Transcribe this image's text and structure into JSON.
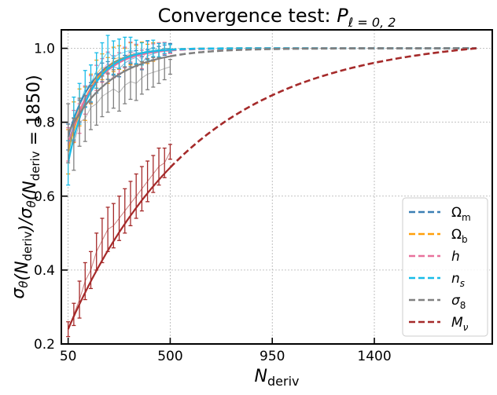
{
  "chart_data": {
    "type": "line",
    "title": "Convergence test: P_{ℓ=0,2}",
    "title_parts": {
      "main": "Convergence test: ",
      "symbol": "P",
      "subscript": "ℓ = 0, 2"
    },
    "xlabel": "N_deriv",
    "xlabel_parts": {
      "symbol": "N",
      "subscript": "deriv"
    },
    "ylabel": "σ_θ(N_deriv)/σ_θ(N_deriv = 1850)",
    "ylabel_parts": [
      {
        "t": "σ",
        "s": "θ"
      },
      {
        "t": "(N",
        "s": "deriv"
      },
      {
        "t": ")/σ",
        "s": "θ"
      },
      {
        "t": "(N",
        "s": "deriv"
      },
      {
        "t": " = 1850)",
        "s": ""
      }
    ],
    "xlim": [
      20,
      1920
    ],
    "ylim": [
      0.2,
      1.05
    ],
    "xticks": [
      50,
      500,
      950,
      1400
    ],
    "yticks": [
      0.2,
      0.4,
      0.6,
      0.8,
      1.0
    ],
    "xtick_labels": [
      "50",
      "500",
      "950",
      "1400"
    ],
    "ytick_labels": [
      "0.2",
      "0.4",
      "0.6",
      "0.8",
      "1.0"
    ],
    "grid": true,
    "legend_position": "lower right",
    "fit_range": [
      50,
      1850
    ],
    "fit_solid_until": 500,
    "series": [
      {
        "name": "Ω",
        "sub": "m",
        "italic": false,
        "color": "#3b7fb4",
        "fit": {
          "tau": 110
        },
        "sample_at": 70,
        "sample_jitter": 0.025,
        "data": {
          "x": [
            50,
            75,
            100,
            125,
            150,
            175,
            200,
            225,
            250,
            275,
            300,
            325,
            350,
            375,
            400,
            425,
            450,
            475,
            500
          ],
          "y": [
            0.76,
            0.78,
            0.83,
            0.87,
            0.88,
            0.905,
            0.935,
            0.94,
            0.95,
            0.945,
            0.96,
            0.97,
            0.975,
            0.96,
            0.98,
            0.985,
            0.99,
            0.995,
            1.0
          ],
          "err": [
            0.035,
            0.032,
            0.03,
            0.028,
            0.027,
            0.026,
            0.025,
            0.024,
            0.023,
            0.022,
            0.021,
            0.02,
            0.019,
            0.018,
            0.017,
            0.016,
            0.015,
            0.014,
            0.013
          ]
        }
      },
      {
        "name": "Ω",
        "sub": "b",
        "italic": false,
        "color": "#ff9f0a",
        "fit": {
          "tau": 105
        },
        "sample_at": 95,
        "sample_jitter": 0.03,
        "data": {
          "x": [
            50,
            75,
            100,
            125,
            150,
            175,
            200,
            225,
            250,
            275,
            300,
            325,
            350,
            375,
            400,
            425,
            450,
            475,
            500
          ],
          "y": [
            0.72,
            0.8,
            0.84,
            0.85,
            0.89,
            0.93,
            0.95,
            0.94,
            0.97,
            0.975,
            0.97,
            0.985,
            0.98,
            0.99,
            0.985,
            0.99,
            0.995,
            1.0,
            1.0
          ],
          "err": [
            0.06,
            0.055,
            0.05,
            0.045,
            0.04,
            0.038,
            0.035,
            0.035,
            0.033,
            0.032,
            0.03,
            0.03,
            0.028,
            0.027,
            0.026,
            0.025,
            0.02,
            0.015,
            0.01
          ]
        }
      },
      {
        "name": "h",
        "sub": "",
        "italic": true,
        "color": "#e8719c",
        "fit": {
          "tau": 118
        },
        "sample_at": 82,
        "sample_jitter": 0.03,
        "data": {
          "x": [
            50,
            75,
            100,
            125,
            150,
            175,
            200,
            225,
            250,
            275,
            300,
            325,
            350,
            375,
            400,
            425,
            450,
            475,
            500
          ],
          "y": [
            0.74,
            0.79,
            0.81,
            0.86,
            0.89,
            0.92,
            0.94,
            0.96,
            0.95,
            0.96,
            0.975,
            0.99,
            0.985,
            0.97,
            0.995,
            0.99,
            0.995,
            1.0,
            0.998
          ],
          "err": [
            0.045,
            0.042,
            0.04,
            0.038,
            0.036,
            0.034,
            0.032,
            0.03,
            0.03,
            0.028,
            0.028,
            0.027,
            0.026,
            0.025,
            0.024,
            0.022,
            0.02,
            0.016,
            0.012
          ]
        }
      },
      {
        "name": "n",
        "sub": "s",
        "italic": true,
        "color": "#18bce8",
        "fit": {
          "tau": 102
        },
        "sample_at": 60,
        "sample_jitter": 0.035,
        "data": {
          "x": [
            50,
            75,
            100,
            125,
            150,
            175,
            200,
            225,
            250,
            275,
            300,
            325,
            350,
            375,
            400,
            425,
            450,
            475,
            500
          ],
          "y": [
            0.69,
            0.81,
            0.85,
            0.89,
            0.905,
            0.94,
            0.97,
            0.99,
            0.975,
            0.985,
            0.99,
            0.995,
            0.99,
            0.985,
            0.995,
            1.0,
            0.995,
            1.0,
            1.0
          ],
          "err": [
            0.06,
            0.058,
            0.055,
            0.05,
            0.05,
            0.048,
            0.045,
            0.045,
            0.045,
            0.04,
            0.04,
            0.035,
            0.032,
            0.03,
            0.026,
            0.022,
            0.018,
            0.014,
            0.01
          ]
        }
      },
      {
        "name": "σ",
        "sub": "8",
        "italic": true,
        "color": "#808080",
        "fit": {
          "tau": 190
        },
        "sample_at": 65,
        "sample_jitter": 0.03,
        "data": {
          "x": [
            50,
            75,
            100,
            125,
            150,
            175,
            200,
            225,
            250,
            275,
            300,
            325,
            350,
            375,
            400,
            425,
            450,
            475,
            500
          ],
          "y": [
            0.77,
            0.74,
            0.8,
            0.81,
            0.84,
            0.85,
            0.87,
            0.88,
            0.89,
            0.88,
            0.9,
            0.91,
            0.905,
            0.92,
            0.93,
            0.935,
            0.94,
            0.945,
            0.95
          ],
          "err": [
            0.08,
            0.07,
            0.065,
            0.062,
            0.06,
            0.058,
            0.055,
            0.053,
            0.052,
            0.05,
            0.05,
            0.048,
            0.046,
            0.044,
            0.042,
            0.04,
            0.035,
            0.03,
            0.02
          ]
        }
      },
      {
        "name": "M",
        "sub": "ν",
        "italic": true,
        "color": "#a52a2a",
        "fit": {
          "tau": 560
        },
        "sample_at": 140,
        "sample_jitter": 0.02,
        "data": {
          "x": [
            50,
            75,
            100,
            125,
            150,
            175,
            200,
            225,
            250,
            275,
            300,
            325,
            350,
            375,
            400,
            425,
            450,
            475,
            500
          ],
          "y": [
            0.24,
            0.28,
            0.32,
            0.37,
            0.4,
            0.45,
            0.48,
            0.51,
            0.52,
            0.54,
            0.56,
            0.58,
            0.6,
            0.62,
            0.64,
            0.66,
            0.68,
            0.69,
            0.72
          ],
          "err": [
            0.02,
            0.03,
            0.05,
            0.05,
            0.05,
            0.05,
            0.06,
            0.06,
            0.06,
            0.06,
            0.06,
            0.06,
            0.06,
            0.06,
            0.055,
            0.05,
            0.05,
            0.04,
            0.02
          ]
        }
      }
    ]
  }
}
